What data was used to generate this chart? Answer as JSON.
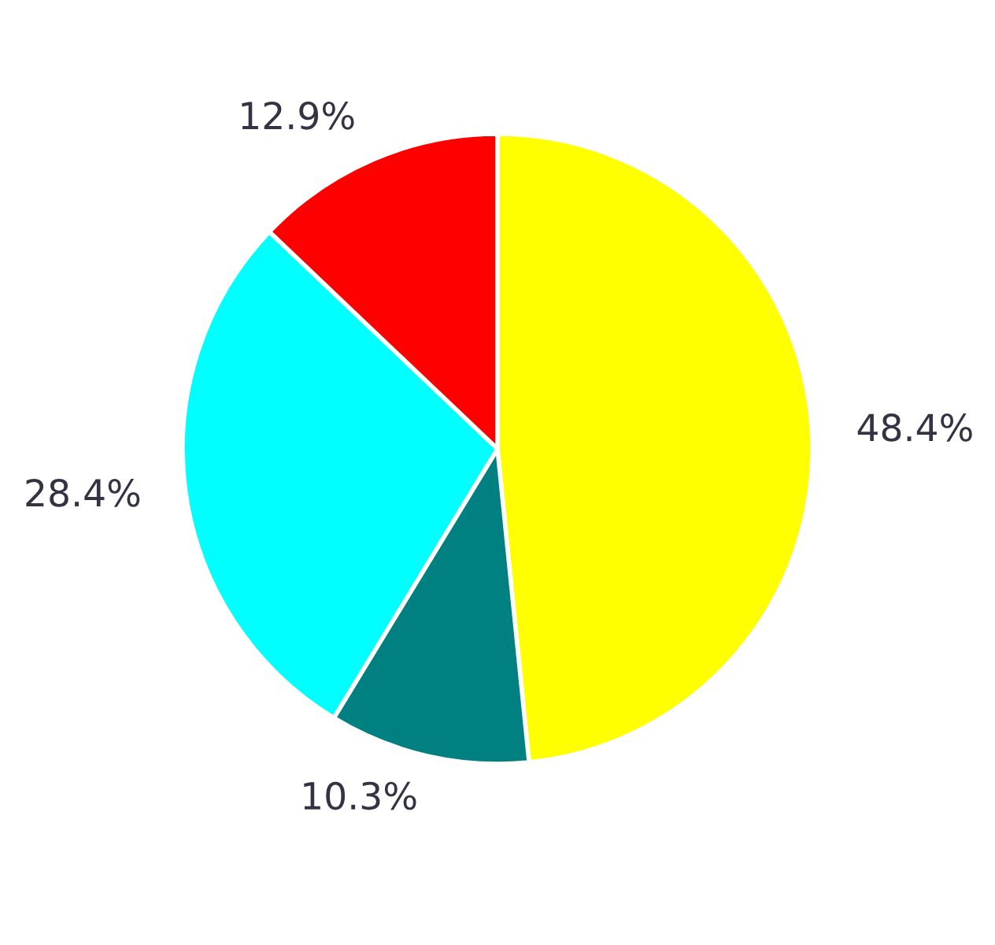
{
  "chart_data": {
    "type": "pie",
    "categories": [
      null,
      null,
      null,
      null
    ],
    "values": [
      48.4,
      10.3,
      28.4,
      12.9
    ],
    "value_labels": [
      "48.4%",
      "10.3%",
      "28.4%",
      "12.9%"
    ],
    "colors": [
      "#ffff00",
      "#008080",
      "#00ffff",
      "#ff0000"
    ]
  }
}
